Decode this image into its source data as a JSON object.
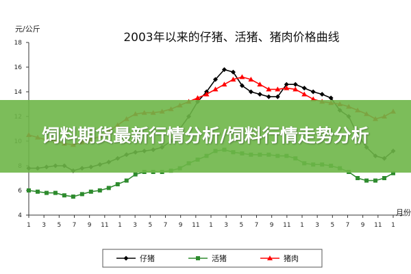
{
  "banner": {
    "headline": "饲料期货最新行情分析/饲料行情走势分析"
  },
  "chart_data": {
    "type": "line",
    "title": "2003年以来的仔猪、活猪、猪肉价格曲线",
    "ylabel": "元/公斤",
    "xlabel": "月份",
    "ylim": [
      4,
      18
    ],
    "yticks": [
      4,
      6,
      8,
      10,
      12,
      14,
      16,
      18
    ],
    "x_tick_labels": [
      "1",
      "3",
      "5",
      "7",
      "9",
      "11",
      "1",
      "3",
      "5",
      "7",
      "9",
      "11",
      "1",
      "3",
      "5",
      "7",
      "9",
      "11",
      "1",
      "3",
      "5",
      "7",
      "9",
      "11",
      "1"
    ],
    "grid": false,
    "legend_position": "bottom",
    "series": [
      {
        "name": "仔猪",
        "color": "#000000",
        "marker": "diamond",
        "values": [
          7.8,
          7.8,
          7.9,
          8.0,
          8.0,
          7.6,
          7.8,
          7.9,
          8.1,
          8.3,
          8.6,
          8.9,
          9.1,
          9.2,
          9.3,
          9.5,
          10.0,
          11.0,
          12.0,
          13.2,
          14.0,
          15.0,
          15.8,
          15.6,
          14.5,
          14.0,
          13.8,
          13.6,
          13.6,
          14.6,
          14.6,
          14.3,
          14.0,
          13.8,
          13.5,
          12.5,
          12.0,
          10.5,
          9.5,
          8.8,
          8.6,
          9.2
        ]
      },
      {
        "name": "活猪",
        "color": "#2e8b2e",
        "marker": "square",
        "values": [
          6.0,
          5.9,
          5.8,
          5.8,
          5.6,
          5.5,
          5.7,
          5.9,
          6.0,
          6.2,
          6.5,
          6.8,
          7.3,
          7.5,
          7.5,
          7.5,
          7.6,
          7.8,
          8.2,
          8.5,
          8.8,
          9.2,
          9.3,
          9.1,
          9.0,
          8.9,
          8.9,
          8.9,
          8.8,
          8.8,
          8.6,
          8.2,
          8.1,
          8.1,
          8.0,
          7.8,
          7.5,
          7.0,
          6.8,
          6.8,
          7.0,
          7.4
        ]
      },
      {
        "name": "猪肉",
        "color": "#ff0000",
        "marker": "triangle",
        "values": [
          10.5,
          10.3,
          10.1,
          10.0,
          9.8,
          9.7,
          9.9,
          10.1,
          10.4,
          10.8,
          11.3,
          11.8,
          12.2,
          12.3,
          12.3,
          12.4,
          12.6,
          12.9,
          13.2,
          13.5,
          13.8,
          14.2,
          14.6,
          15.0,
          15.2,
          15.0,
          14.6,
          14.2,
          14.2,
          14.3,
          14.2,
          13.8,
          13.4,
          13.2,
          13.1,
          13.0,
          12.8,
          12.5,
          12.2,
          11.8,
          12.0,
          12.4
        ]
      }
    ]
  }
}
